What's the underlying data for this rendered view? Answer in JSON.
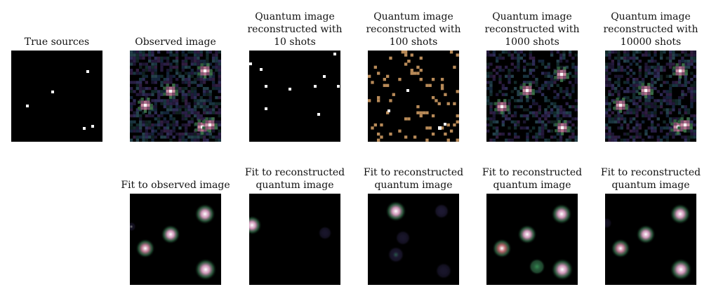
{
  "top_row": [
    {
      "id": "true-sources",
      "title": [
        "True sources"
      ]
    },
    {
      "id": "observed",
      "title": [
        "Observed image"
      ]
    },
    {
      "id": "q10",
      "title": [
        "Quantum image",
        "reconstructed with",
        "10 shots"
      ]
    },
    {
      "id": "q100",
      "title": [
        "Quantum image",
        "reconstructed with",
        "100 shots"
      ]
    },
    {
      "id": "q1000",
      "title": [
        "Quantum image",
        "reconstructed with",
        "1000 shots"
      ]
    },
    {
      "id": "q10000",
      "title": [
        "Quantum image",
        "reconstructed with",
        "10000 shots"
      ]
    }
  ],
  "bottom_row": [
    {
      "id": "fit-observed",
      "title": [
        "Fit to observed image"
      ]
    },
    {
      "id": "fit-q10",
      "title": [
        "Fit to reconstructed",
        "quantum image"
      ]
    },
    {
      "id": "fit-q100",
      "title": [
        "Fit to reconstructed",
        "quantum image"
      ]
    },
    {
      "id": "fit-q1000",
      "title": [
        "Fit to reconstructed",
        "quantum image"
      ]
    },
    {
      "id": "fit-q10000",
      "title": [
        "Fit to reconstructed",
        "quantum image"
      ]
    }
  ],
  "colors": {
    "background": "#000000",
    "speck": "#b88a58",
    "point": "#ffffff"
  }
}
